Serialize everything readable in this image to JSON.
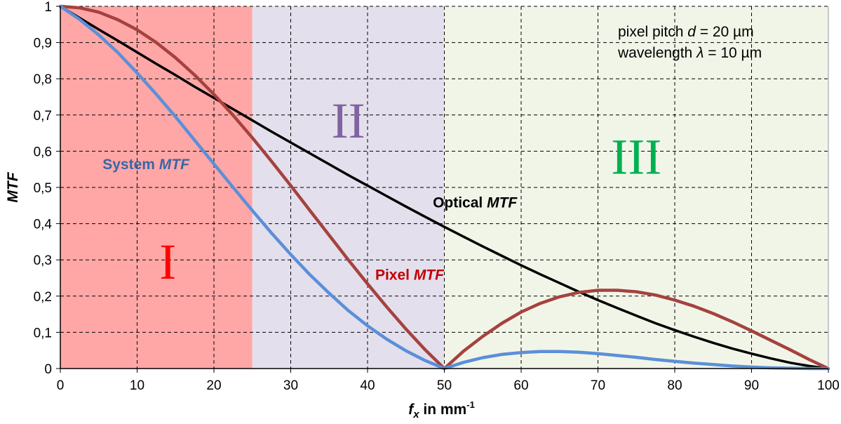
{
  "chart_data": {
    "type": "line",
    "title": "",
    "xlabel": "f_x in mm^-1",
    "xlabel_parts": {
      "var": "f",
      "sub": "x",
      "rest": " in mm",
      "sup": "-1"
    },
    "ylabel": "MTF",
    "xlim": [
      0,
      100
    ],
    "ylim": [
      0,
      1
    ],
    "grid": true,
    "x_ticks": [
      0,
      10,
      20,
      30,
      40,
      50,
      60,
      70,
      80,
      90,
      100
    ],
    "x_tick_labels": [
      "0",
      "10",
      "20",
      "30",
      "40",
      "50",
      "60",
      "70",
      "80",
      "90",
      "100"
    ],
    "y_ticks": [
      0,
      0.1,
      0.2,
      0.3,
      0.4,
      0.5,
      0.6,
      0.7,
      0.8,
      0.9,
      1
    ],
    "y_tick_labels": [
      "0",
      "0,1",
      "0,2",
      "0,3",
      "0,4",
      "0,5",
      "0,6",
      "0,7",
      "0,8",
      "0,9",
      "1"
    ],
    "regions": [
      {
        "label": "I",
        "x_from": 0,
        "x_to": 25,
        "fill": "#FFA7A7",
        "label_color": "#FF0000",
        "label_pos": [
          14,
          0.28
        ]
      },
      {
        "label": "II",
        "x_from": 25,
        "x_to": 50,
        "fill": "#E4DFEC",
        "label_color": "#8064A2",
        "label_pos": [
          37.5,
          0.67
        ]
      },
      {
        "label": "III",
        "x_from": 50,
        "x_to": 100,
        "fill": "#F1F5E8",
        "label_color": "#00B050",
        "label_pos": [
          75,
          0.57
        ]
      }
    ],
    "x": [
      0,
      2.5,
      5,
      7.5,
      10,
      12.5,
      15,
      17.5,
      20,
      22.5,
      25,
      27.5,
      30,
      32.5,
      35,
      37.5,
      40,
      42.5,
      45,
      47.5,
      50,
      52.5,
      55,
      57.5,
      60,
      62.5,
      65,
      67.5,
      70,
      72.5,
      75,
      77.5,
      80,
      82.5,
      85,
      87.5,
      90,
      92.5,
      95,
      97.5,
      100
    ],
    "series": [
      {
        "name": "Optical MTF",
        "color": "#000000",
        "values": [
          1.0,
          0.968,
          0.936,
          0.905,
          0.873,
          0.841,
          0.81,
          0.778,
          0.747,
          0.716,
          0.685,
          0.654,
          0.624,
          0.594,
          0.564,
          0.534,
          0.505,
          0.476,
          0.447,
          0.419,
          0.391,
          0.364,
          0.337,
          0.311,
          0.285,
          0.26,
          0.236,
          0.212,
          0.189,
          0.167,
          0.146,
          0.125,
          0.106,
          0.088,
          0.071,
          0.055,
          0.041,
          0.028,
          0.016,
          0.007,
          0.0
        ]
      },
      {
        "name": "Pixel MTF",
        "color": "#A5423E",
        "values": [
          1.0,
          0.996,
          0.984,
          0.963,
          0.935,
          0.9,
          0.858,
          0.81,
          0.757,
          0.699,
          0.637,
          0.572,
          0.505,
          0.436,
          0.368,
          0.3,
          0.234,
          0.17,
          0.109,
          0.052,
          0.0,
          0.048,
          0.089,
          0.125,
          0.156,
          0.18,
          0.198,
          0.21,
          0.216,
          0.216,
          0.212,
          0.203,
          0.189,
          0.172,
          0.152,
          0.129,
          0.104,
          0.078,
          0.052,
          0.025,
          0.0
        ]
      },
      {
        "name": "System MTF",
        "color": "#5B8FD9",
        "values": [
          1.0,
          0.964,
          0.921,
          0.872,
          0.816,
          0.757,
          0.695,
          0.63,
          0.565,
          0.5,
          0.436,
          0.374,
          0.315,
          0.259,
          0.208,
          0.16,
          0.118,
          0.081,
          0.049,
          0.022,
          0.0,
          0.017,
          0.03,
          0.039,
          0.044,
          0.047,
          0.047,
          0.045,
          0.041,
          0.036,
          0.031,
          0.025,
          0.02,
          0.015,
          0.011,
          0.007,
          0.004,
          0.002,
          0.001,
          0.0,
          0.0
        ]
      }
    ],
    "annotations": [
      {
        "text_plain": "System ",
        "text_italic": "MTF",
        "color": "#3B66A4",
        "at": [
          5.5,
          0.55
        ]
      },
      {
        "text_plain": "Optical ",
        "text_italic": "MTF",
        "color": "#000000",
        "at": [
          48.5,
          0.445
        ]
      },
      {
        "text_plain": "Pixel ",
        "text_italic": "MTF",
        "color": "#C00000",
        "at": [
          41,
          0.245
        ]
      }
    ],
    "note_lines": [
      {
        "plain": "pixel pitch ",
        "italic": "d",
        "rest": " = 20 µm"
      },
      {
        "plain": "wavelength ",
        "italic": "λ",
        "rest": " = 10 µm"
      }
    ]
  }
}
